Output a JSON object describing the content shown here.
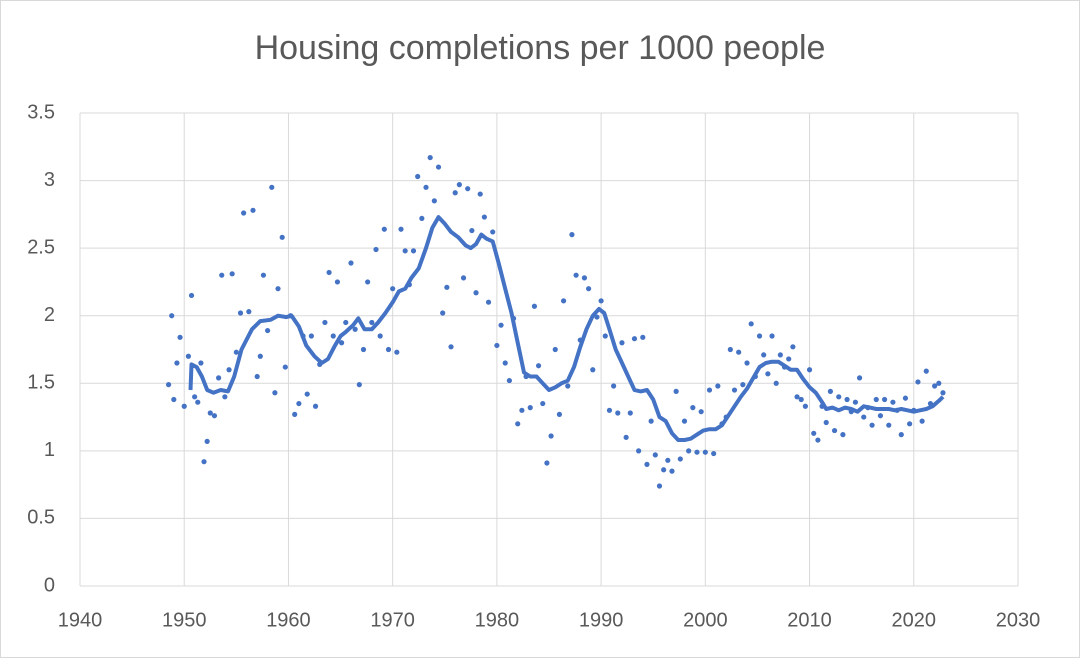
{
  "chart_data": {
    "type": "scatter",
    "title": "Housing completions per 1000 people",
    "xlim": [
      1940,
      2030
    ],
    "xticks": [
      1940,
      1950,
      1960,
      1970,
      1980,
      1990,
      2000,
      2010,
      2020,
      2030
    ],
    "ylim": [
      0,
      3.5
    ],
    "yticks": [
      0,
      0.5,
      1,
      1.5,
      2,
      2.5,
      3,
      3.5
    ],
    "grid": true,
    "series": [
      {
        "mode": "markers",
        "color": "#4472c4",
        "x": [
          1948.5,
          1948.8,
          1949.0,
          1949.3,
          1949.6,
          1950.0,
          1950.4,
          1950.7,
          1951.0,
          1951.3,
          1951.6,
          1951.9,
          1952.2,
          1952.5,
          1952.9,
          1953.3,
          1953.6,
          1953.9,
          1954.3,
          1954.6,
          1955.0,
          1955.4,
          1955.7,
          1956.2,
          1956.6,
          1957.0,
          1957.3,
          1957.6,
          1958.0,
          1958.4,
          1958.7,
          1959.0,
          1959.4,
          1959.7,
          1960.2,
          1960.6,
          1961.0,
          1961.4,
          1961.8,
          1962.2,
          1962.6,
          1963.0,
          1963.5,
          1963.9,
          1964.3,
          1964.7,
          1965.1,
          1965.5,
          1966.0,
          1966.4,
          1966.8,
          1967.2,
          1967.6,
          1968.0,
          1968.4,
          1968.8,
          1969.2,
          1969.6,
          1970.0,
          1970.4,
          1970.8,
          1971.2,
          1971.6,
          1972.0,
          1972.4,
          1972.8,
          1973.2,
          1973.6,
          1974.0,
          1974.4,
          1974.8,
          1975.2,
          1975.6,
          1976.0,
          1976.4,
          1976.8,
          1977.2,
          1977.6,
          1978.0,
          1978.4,
          1978.8,
          1979.2,
          1979.6,
          1980.0,
          1980.4,
          1980.8,
          1981.2,
          1981.6,
          1982.0,
          1982.4,
          1982.8,
          1983.2,
          1983.6,
          1984.0,
          1984.4,
          1984.8,
          1985.2,
          1985.6,
          1986.0,
          1986.4,
          1986.8,
          1987.2,
          1987.6,
          1988.0,
          1988.4,
          1988.8,
          1989.2,
          1989.6,
          1990.0,
          1990.4,
          1990.8,
          1991.2,
          1991.6,
          1992.0,
          1992.4,
          1992.8,
          1993.2,
          1993.6,
          1994.0,
          1994.4,
          1994.8,
          1995.2,
          1995.6,
          1996.0,
          1996.4,
          1996.8,
          1997.2,
          1997.6,
          1998.0,
          1998.4,
          1998.8,
          1999.2,
          1999.6,
          2000.0,
          2000.4,
          2000.8,
          2001.2,
          2001.6,
          2002.0,
          2002.4,
          2002.8,
          2003.2,
          2003.6,
          2004.0,
          2004.4,
          2004.8,
          2005.2,
          2005.6,
          2006.0,
          2006.4,
          2006.8,
          2007.2,
          2007.6,
          2008.0,
          2008.4,
          2008.8,
          2009.2,
          2009.6,
          2010.0,
          2010.4,
          2010.8,
          2011.2,
          2011.6,
          2012.0,
          2012.4,
          2012.8,
          2013.2,
          2013.6,
          2014.0,
          2014.4,
          2014.8,
          2015.2,
          2015.6,
          2016.0,
          2016.4,
          2016.8,
          2017.2,
          2017.6,
          2018.0,
          2018.4,
          2018.8,
          2019.2,
          2019.6,
          2020.0,
          2020.4,
          2020.8,
          2021.2,
          2021.6,
          2022.0,
          2022.4,
          2022.8
        ],
        "values": [
          1.49,
          2.0,
          1.38,
          1.65,
          1.84,
          1.33,
          1.7,
          2.15,
          1.4,
          1.36,
          1.65,
          0.92,
          1.07,
          1.28,
          1.26,
          1.54,
          2.3,
          1.4,
          1.6,
          2.31,
          1.73,
          2.02,
          2.76,
          2.03,
          2.78,
          1.55,
          1.7,
          2.3,
          1.89,
          2.95,
          1.43,
          2.2,
          2.58,
          1.62,
          2.0,
          1.27,
          1.35,
          1.85,
          1.42,
          1.85,
          1.33,
          1.64,
          1.95,
          2.32,
          1.85,
          2.25,
          1.8,
          1.95,
          2.39,
          1.9,
          1.49,
          1.75,
          2.25,
          1.95,
          2.49,
          1.85,
          2.64,
          1.75,
          2.2,
          1.73,
          2.64,
          2.48,
          2.23,
          2.48,
          3.03,
          2.72,
          2.95,
          3.17,
          2.85,
          3.1,
          2.02,
          2.21,
          1.77,
          2.91,
          2.97,
          2.28,
          2.94,
          2.63,
          2.17,
          2.9,
          2.73,
          2.1,
          2.62,
          1.78,
          1.93,
          1.65,
          1.52,
          1.98,
          1.2,
          1.3,
          1.55,
          1.32,
          2.07,
          1.63,
          1.35,
          0.91,
          1.11,
          1.75,
          1.27,
          2.11,
          1.48,
          2.6,
          2.3,
          1.82,
          2.28,
          2.2,
          1.6,
          1.99,
          2.11,
          1.85,
          1.3,
          1.48,
          1.28,
          1.8,
          1.1,
          1.28,
          1.83,
          1.0,
          1.84,
          0.9,
          1.22,
          0.97,
          0.74,
          0.86,
          0.93,
          0.85,
          1.44,
          0.94,
          1.22,
          1.0,
          1.32,
          0.99,
          1.29,
          0.99,
          1.45,
          0.98,
          1.48,
          1.2,
          1.25,
          1.75,
          1.45,
          1.73,
          1.49,
          1.65,
          1.94,
          1.55,
          1.85,
          1.71,
          1.57,
          1.85,
          1.5,
          1.71,
          1.62,
          1.68,
          1.77,
          1.4,
          1.38,
          1.33,
          1.6,
          1.13,
          1.08,
          1.33,
          1.21,
          1.44,
          1.15,
          1.4,
          1.12,
          1.38,
          1.29,
          1.36,
          1.54,
          1.25,
          1.32,
          1.19,
          1.38,
          1.26,
          1.38,
          1.19,
          1.36,
          1.3,
          1.12,
          1.39,
          1.2,
          1.3,
          1.51,
          1.22,
          1.59,
          1.35,
          1.48,
          1.5,
          1.43
        ]
      },
      {
        "mode": "line",
        "color": "#4472c4",
        "x": [
          1950.6,
          1950.7,
          1951.2,
          1951.7,
          1952.2,
          1952.8,
          1953.5,
          1954.2,
          1954.8,
          1955.5,
          1956.5,
          1957.3,
          1958.3,
          1959.0,
          1959.8,
          1960.3,
          1961.0,
          1961.7,
          1962.5,
          1963.2,
          1963.8,
          1964.4,
          1965.0,
          1965.5,
          1966.2,
          1966.7,
          1967.3,
          1968.0,
          1968.6,
          1969.3,
          1970.0,
          1970.6,
          1971.2,
          1971.8,
          1972.5,
          1973.2,
          1973.8,
          1974.4,
          1975.0,
          1975.6,
          1976.3,
          1977.0,
          1977.5,
          1978.0,
          1978.5,
          1979.0,
          1979.6,
          1980.2,
          1980.8,
          1981.4,
          1982.0,
          1982.6,
          1983.2,
          1983.8,
          1984.4,
          1985.0,
          1985.6,
          1986.2,
          1986.8,
          1987.4,
          1988.0,
          1988.6,
          1989.2,
          1989.8,
          1990.3,
          1990.8,
          1991.4,
          1992.0,
          1992.6,
          1993.2,
          1993.8,
          1994.4,
          1995.0,
          1995.6,
          1996.2,
          1996.8,
          1997.4,
          1998.0,
          1998.6,
          1999.2,
          1999.8,
          2000.4,
          2001.0,
          2001.6,
          2002.2,
          2002.8,
          2003.4,
          2004.0,
          2004.6,
          2005.2,
          2005.8,
          2006.4,
          2007.0,
          2007.6,
          2008.2,
          2008.8,
          2009.4,
          2010.0,
          2010.6,
          2011.2,
          2011.6,
          2012.2,
          2012.8,
          2013.4,
          2014.0,
          2014.6,
          2015.2,
          2015.8,
          2016.4,
          2017.0,
          2017.6,
          2018.2,
          2018.8,
          2019.4,
          2020.0,
          2020.6,
          2021.2,
          2021.8,
          2022.4,
          2022.8
        ],
        "values": [
          1.45,
          1.64,
          1.62,
          1.55,
          1.45,
          1.43,
          1.45,
          1.44,
          1.55,
          1.75,
          1.9,
          1.96,
          1.97,
          2.0,
          1.99,
          2.0,
          1.92,
          1.78,
          1.7,
          1.65,
          1.68,
          1.77,
          1.85,
          1.88,
          1.93,
          1.98,
          1.9,
          1.9,
          1.95,
          2.02,
          2.1,
          2.18,
          2.2,
          2.28,
          2.35,
          2.5,
          2.65,
          2.73,
          2.68,
          2.62,
          2.58,
          2.52,
          2.5,
          2.53,
          2.6,
          2.57,
          2.55,
          2.38,
          2.2,
          2.02,
          1.8,
          1.58,
          1.55,
          1.55,
          1.5,
          1.45,
          1.47,
          1.5,
          1.52,
          1.62,
          1.77,
          1.9,
          2.0,
          2.05,
          2.02,
          1.9,
          1.75,
          1.65,
          1.55,
          1.45,
          1.44,
          1.45,
          1.38,
          1.25,
          1.22,
          1.13,
          1.08,
          1.08,
          1.09,
          1.12,
          1.15,
          1.16,
          1.16,
          1.19,
          1.26,
          1.33,
          1.4,
          1.46,
          1.54,
          1.62,
          1.65,
          1.66,
          1.66,
          1.63,
          1.6,
          1.6,
          1.53,
          1.47,
          1.43,
          1.36,
          1.31,
          1.32,
          1.3,
          1.32,
          1.31,
          1.29,
          1.33,
          1.32,
          1.31,
          1.31,
          1.31,
          1.3,
          1.31,
          1.3,
          1.29,
          1.3,
          1.31,
          1.33,
          1.37,
          1.4
        ]
      }
    ]
  }
}
